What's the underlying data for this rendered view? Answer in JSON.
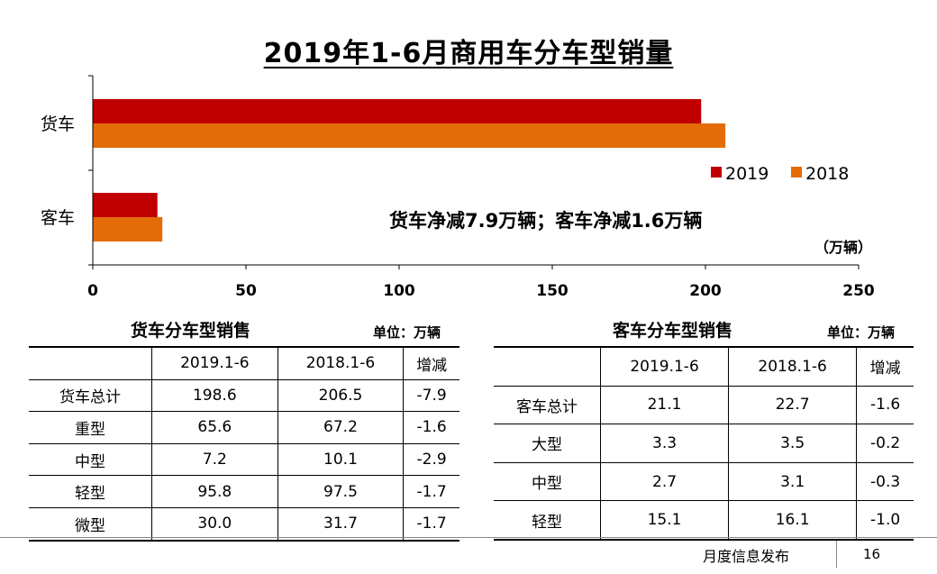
{
  "title": "2019年1-6月商用车分车型销量",
  "chart_data": {
    "type": "bar",
    "orientation": "horizontal",
    "categories": [
      "货车",
      "客车"
    ],
    "series": [
      {
        "name": "2019",
        "values": [
          198.6,
          21.1
        ],
        "color": "#C00000"
      },
      {
        "name": "2018",
        "values": [
          206.5,
          22.7
        ],
        "color": "#E36C09"
      }
    ],
    "xlim": [
      0,
      250
    ],
    "xticks": [
      "0",
      "50",
      "100",
      "150",
      "200",
      "250"
    ],
    "unit_label": "（万辆）",
    "annotation": "货车净减7.9万辆；客车净减1.6万辆",
    "legend_position": "right",
    "grid": false
  },
  "truck_table": {
    "heading": "货车分车型销售",
    "unit": "单位：万辆",
    "columns": [
      "",
      "2019.1-6",
      "2018.1-6",
      "增减"
    ],
    "rows": [
      [
        "货车总计",
        "198.6",
        "206.5",
        "-7.9"
      ],
      [
        "重型",
        "65.6",
        "67.2",
        "-1.6"
      ],
      [
        "中型",
        "7.2",
        "10.1",
        "-2.9"
      ],
      [
        "轻型",
        "95.8",
        "97.5",
        "-1.7"
      ],
      [
        "微型",
        "30.0",
        "31.7",
        "-1.7"
      ]
    ]
  },
  "bus_table": {
    "heading": "客车分车型销售",
    "unit": "单位：万辆",
    "columns": [
      "",
      "2019.1-6",
      "2018.1-6",
      "增减"
    ],
    "rows": [
      [
        "客车总计",
        "21.1",
        "22.7",
        "-1.6"
      ],
      [
        "大型",
        "3.3",
        "3.5",
        "-0.2"
      ],
      [
        "中型",
        "2.7",
        "3.1",
        "-0.3"
      ],
      [
        "轻型",
        "15.1",
        "16.1",
        "-1.0"
      ]
    ]
  },
  "footer": {
    "label": "月度信息发布",
    "page": "16"
  }
}
